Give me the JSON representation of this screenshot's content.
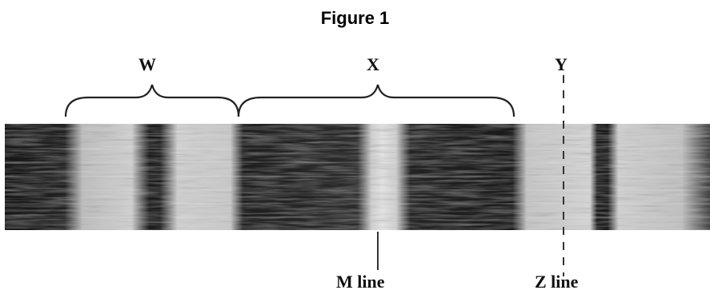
{
  "figure": {
    "title": "Figure 1",
    "labels": {
      "w": "W",
      "x": "X",
      "y": "Y",
      "m_line": "M line",
      "z_line": "Z line"
    }
  }
}
